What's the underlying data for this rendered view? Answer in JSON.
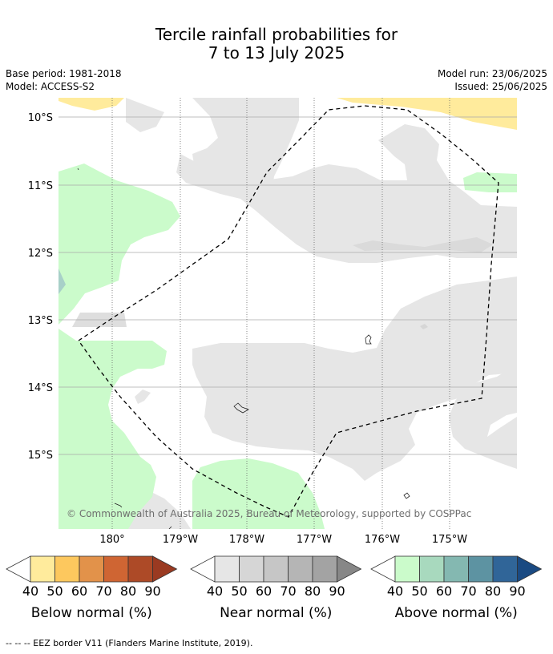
{
  "title": {
    "line1": "Tercile rainfall probabilities for",
    "line2": "7 to 13 July 2025"
  },
  "meta": {
    "base_period": "Base period: 1981-2018",
    "model": "Model: ACCESS-S2",
    "model_run": "Model run: 23/06/2025",
    "issued": "Issued: 25/06/2025"
  },
  "map": {
    "lat_labels": [
      "10°S",
      "11°S",
      "12°S",
      "13°S",
      "14°S",
      "15°S"
    ],
    "lon_labels": [
      "180°",
      "179°W",
      "178°W",
      "177°W",
      "176°W",
      "175°W"
    ],
    "copyright": "© Commonwealth of Australia 2025, Bureau of Meteorology, supported by COSPPac"
  },
  "colorbars": [
    {
      "title": "Below normal (%)",
      "ticks": [
        "40",
        "50",
        "60",
        "70",
        "80",
        "90"
      ],
      "colors": [
        "#ffeb9c",
        "#fdc85e",
        "#e2924a",
        "#cf6533",
        "#ad4a27",
        "#9a3a21"
      ]
    },
    {
      "title": "Near normal (%)",
      "ticks": [
        "40",
        "50",
        "60",
        "70",
        "80",
        "90"
      ],
      "colors": [
        "#e6e6e6",
        "#d6d6d6",
        "#c6c6c6",
        "#b5b5b5",
        "#a3a3a3",
        "#878787"
      ]
    },
    {
      "title": "Above normal (%)",
      "ticks": [
        "40",
        "50",
        "60",
        "70",
        "80",
        "90"
      ],
      "colors": [
        "#cbfbcb",
        "#a8d9be",
        "#84b8b1",
        "#5d93a2",
        "#306598",
        "#1a4a82"
      ]
    }
  ],
  "footer": "--  --  -- EEZ border V11 (Flanders Marine Institute, 2019).",
  "colors": {
    "below_normal": "#ffeb9c",
    "near_normal": "#e6e6e6",
    "above_normal": "#cbfbcb",
    "above_normal_60": "#a8d0c8"
  }
}
